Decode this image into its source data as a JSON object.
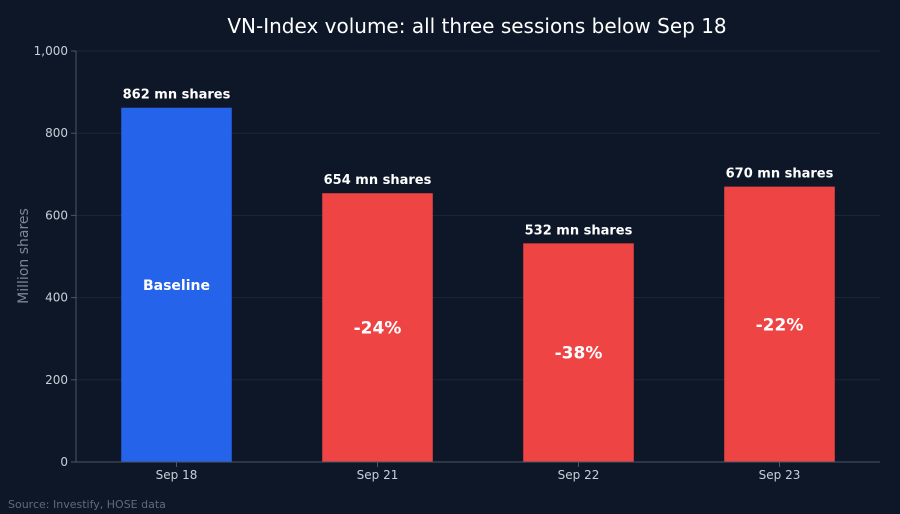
{
  "chart_data": {
    "type": "bar",
    "title": "VN-Index volume: all three sessions below Sep 18",
    "ylabel": "Million shares",
    "xlabel": "",
    "ylim": [
      0,
      1000
    ],
    "yticks": [
      0,
      200,
      400,
      600,
      800,
      1000
    ],
    "ytick_labels": [
      "0",
      "200",
      "400",
      "600",
      "800",
      "1,000"
    ],
    "categories": [
      "Sep 18",
      "Sep 21",
      "Sep 22",
      "Sep 23"
    ],
    "values": [
      862,
      654,
      532,
      670
    ],
    "data_labels": [
      "862 mn shares",
      "654 mn shares",
      "532 mn shares",
      "670 mn shares"
    ],
    "inner_labels": [
      "Baseline",
      "-24%",
      "-38%",
      "-22%"
    ],
    "colors": [
      "#2563eb",
      "#ef4444",
      "#ef4444",
      "#ef4444"
    ],
    "grid": true,
    "legend": "none"
  },
  "source": "Source: Investify, HOSE data"
}
